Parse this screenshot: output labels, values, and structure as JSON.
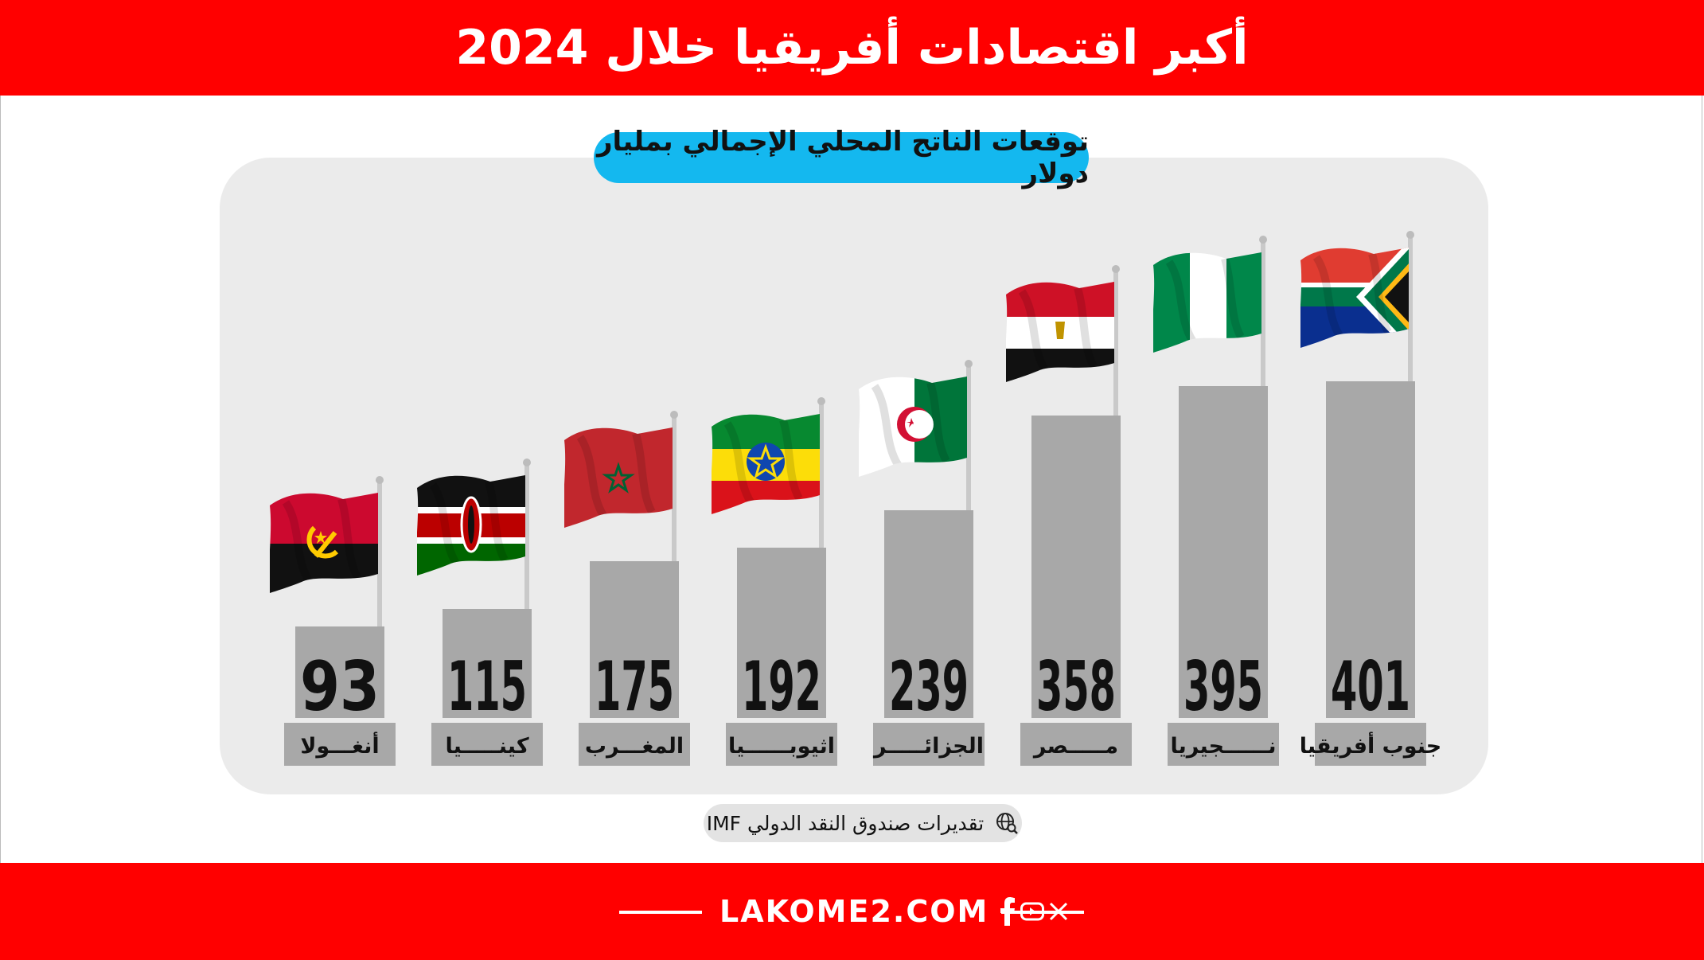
{
  "title": "أكبر اقتصادات أفريقيا خلال 2024",
  "chart_data": {
    "type": "bar",
    "title": "توقعات الناتج المحلي الإجمالي بمليار دولار",
    "categories": [
      "جنوب أفريقيا",
      "نــــــجيريا",
      "مـــــصر",
      "الجزائـــــر",
      "اثيوبــــــيا",
      "المغـــرب",
      "كينـــــيا",
      "أنغـــولا"
    ],
    "values": [
      401,
      395,
      358,
      239,
      192,
      175,
      115,
      93
    ],
    "bar_color": "#a8a8a8",
    "flags": [
      "south-africa-flag-icon",
      "nigeria-flag-icon",
      "egypt-flag-icon",
      "algeria-flag-icon",
      "ethiopia-flag-icon",
      "morocco-flag-icon",
      "kenya-flag-icon",
      "angola-flag-icon"
    ]
  },
  "source": {
    "text": "تقديرات صندوق النقد الدولي IMF",
    "icon": "globe-icon"
  },
  "footer": {
    "brand": "LAKOME2.COM",
    "icons": [
      "facebook-icon",
      "youtube-icon",
      "x-icon"
    ]
  },
  "colors": {
    "header": "#ff0000",
    "footer": "#ff0000",
    "subtitle_bg": "#14b8ef",
    "panel": "#ebebeb"
  }
}
